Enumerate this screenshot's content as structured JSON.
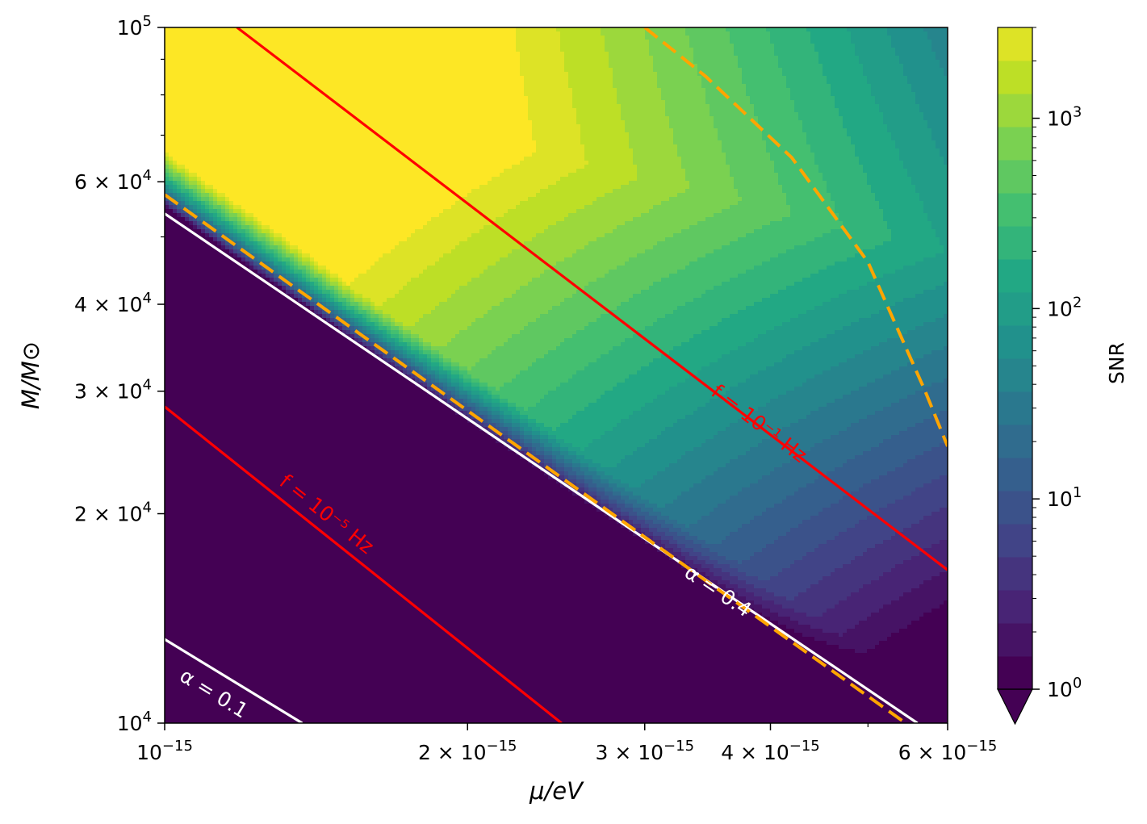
{
  "chart_data": {
    "type": "heatmap",
    "title": "",
    "xlabel": "μ/eV",
    "ylabel": "M/M⊙",
    "x_scale": "log",
    "y_scale": "log",
    "xlim": [
      1e-15,
      6e-15
    ],
    "ylim": [
      10000,
      100000
    ],
    "grid": false,
    "x_ticks": [
      {
        "value": 1e-15,
        "mant": "",
        "exp": "−15"
      },
      {
        "value": 2e-15,
        "mant": "2 × ",
        "exp": "−15"
      },
      {
        "value": 3e-15,
        "mant": "3 × ",
        "exp": "−15"
      },
      {
        "value": 4e-15,
        "mant": "4 × ",
        "exp": "−15"
      },
      {
        "value": 6e-15,
        "mant": "6 × ",
        "exp": "−15"
      }
    ],
    "y_ticks": [
      {
        "value": 10000,
        "mant": "",
        "exp": "4"
      },
      {
        "value": 20000,
        "mant": "2 × ",
        "exp": "4"
      },
      {
        "value": 30000,
        "mant": "3 × ",
        "exp": "4"
      },
      {
        "value": 40000,
        "mant": "4 × ",
        "exp": "4"
      },
      {
        "value": 60000,
        "mant": "6 × ",
        "exp": "4"
      },
      {
        "value": 100000,
        "mant": "",
        "exp": "5"
      }
    ],
    "colorbar": {
      "label": "SNR",
      "scale": "log",
      "range": [
        1,
        3000
      ],
      "extend": "min",
      "levels": 20,
      "ticks": [
        {
          "value": 1,
          "exp": "0"
        },
        {
          "value": 10,
          "exp": "1"
        },
        {
          "value": 100,
          "exp": "2"
        },
        {
          "value": 1000,
          "exp": "3"
        }
      ]
    },
    "lines": [
      {
        "label": "f = 10⁻¹ Hz",
        "color": "#ff0000",
        "style": "solid",
        "points": [
          [
            1.18e-15,
            100000
          ],
          [
            6e-15,
            16600
          ]
        ]
      },
      {
        "label": "f = 10⁻⁵ Hz",
        "color": "#ff0000",
        "style": "solid",
        "points": [
          [
            1e-15,
            28500
          ],
          [
            2.48e-15,
            10000
          ]
        ]
      },
      {
        "label": "α = 0.4",
        "color": "#ffffff",
        "style": "solid",
        "points": [
          [
            1e-15,
            54000
          ],
          [
            5.6e-15,
            10000
          ]
        ]
      },
      {
        "label": "α = 0.1",
        "color": "#ffffff",
        "style": "solid",
        "points": [
          [
            1e-15,
            13200
          ],
          [
            1.37e-15,
            10000
          ]
        ]
      },
      {
        "label": "",
        "color": "#ffa500",
        "style": "dashed",
        "points": [
          [
            1e-15,
            57500
          ],
          [
            5.45e-15,
            10000
          ]
        ]
      },
      {
        "label": "",
        "color": "#ffa500",
        "style": "dashed",
        "points": [
          [
            3e-15,
            100000
          ],
          [
            3.45e-15,
            85000
          ],
          [
            4.2e-15,
            65000
          ],
          [
            5e-15,
            46000
          ],
          [
            5.7e-15,
            30000
          ],
          [
            6e-15,
            25000
          ]
        ]
      }
    ],
    "inline_labels": [
      {
        "text": "f = 10⁻¹ Hz",
        "color": "#ff0000",
        "x": 3.9e-15,
        "y": 27000
      },
      {
        "text": "f = 10⁻⁵ Hz",
        "color": "#ff0000",
        "x": 1.45e-15,
        "y": 20000
      },
      {
        "text": "α = 0.4",
        "color": "#ffffff",
        "x": 3.55e-15,
        "y": 15500
      },
      {
        "text": "α = 0.1",
        "color": "#ffffff",
        "x": 1.12e-15,
        "y": 11050
      }
    ],
    "colors": {
      "viridis": [
        "#440154",
        "#482475",
        "#414487",
        "#355f8d",
        "#2a788e",
        "#21918c",
        "#22a884",
        "#44bf70",
        "#7ad151",
        "#bddf26",
        "#fde725"
      ],
      "f_lines": "#ff0000",
      "alpha_lines": "#ffffff",
      "dashed": "#ffa500"
    }
  }
}
